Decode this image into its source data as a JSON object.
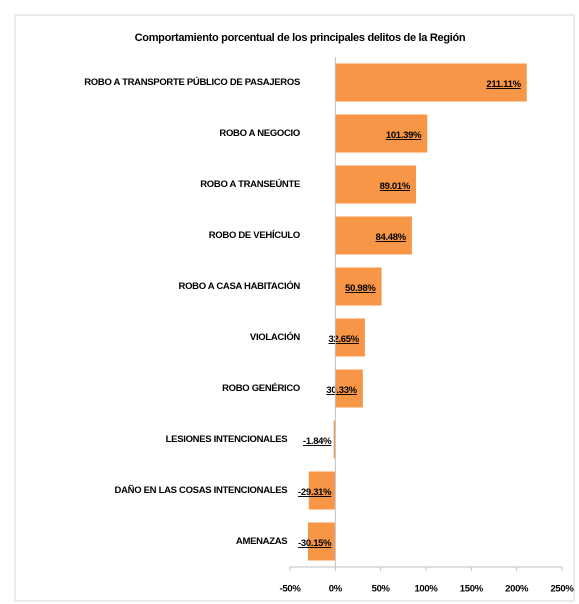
{
  "chart_data": {
    "type": "bar",
    "orientation": "horizontal",
    "title": "Comportamiento porcentual de los principales delitos de la Región",
    "categories": [
      "ROBO A TRANSPORTE PÚBLICO DE PASAJEROS",
      "ROBO A NEGOCIO",
      "ROBO A TRANSEÚNTE",
      "ROBO DE VEHÍCULO",
      "ROBO A CASA HABITACIÓN",
      "VIOLACIÓN",
      "ROBO GENÉRICO",
      "LESIONES INTENCIONALES",
      "DAÑO EN LAS COSAS INTENCIONALES",
      "AMENAZAS"
    ],
    "values": [
      211.11,
      101.39,
      89.01,
      84.48,
      50.98,
      32.65,
      30.33,
      -1.84,
      -29.31,
      -30.15
    ],
    "value_labels": [
      "211.11%",
      "101.39%",
      "89.01%",
      "84.48%",
      "50.98%",
      "32.65%",
      "30.33%",
      "-1.84%",
      "-29.31%",
      "-30.15%"
    ],
    "color": "#f79646",
    "xlim": [
      -50,
      250
    ],
    "xticks": [
      {
        "value": -50,
        "label": "-50%"
      },
      {
        "value": 0,
        "label": "0%"
      },
      {
        "value": 50,
        "label": "50%"
      },
      {
        "value": 100,
        "label": "100%"
      },
      {
        "value": 150,
        "label": "150%"
      },
      {
        "value": 200,
        "label": "200%"
      },
      {
        "value": 250,
        "label": "250%"
      }
    ]
  }
}
